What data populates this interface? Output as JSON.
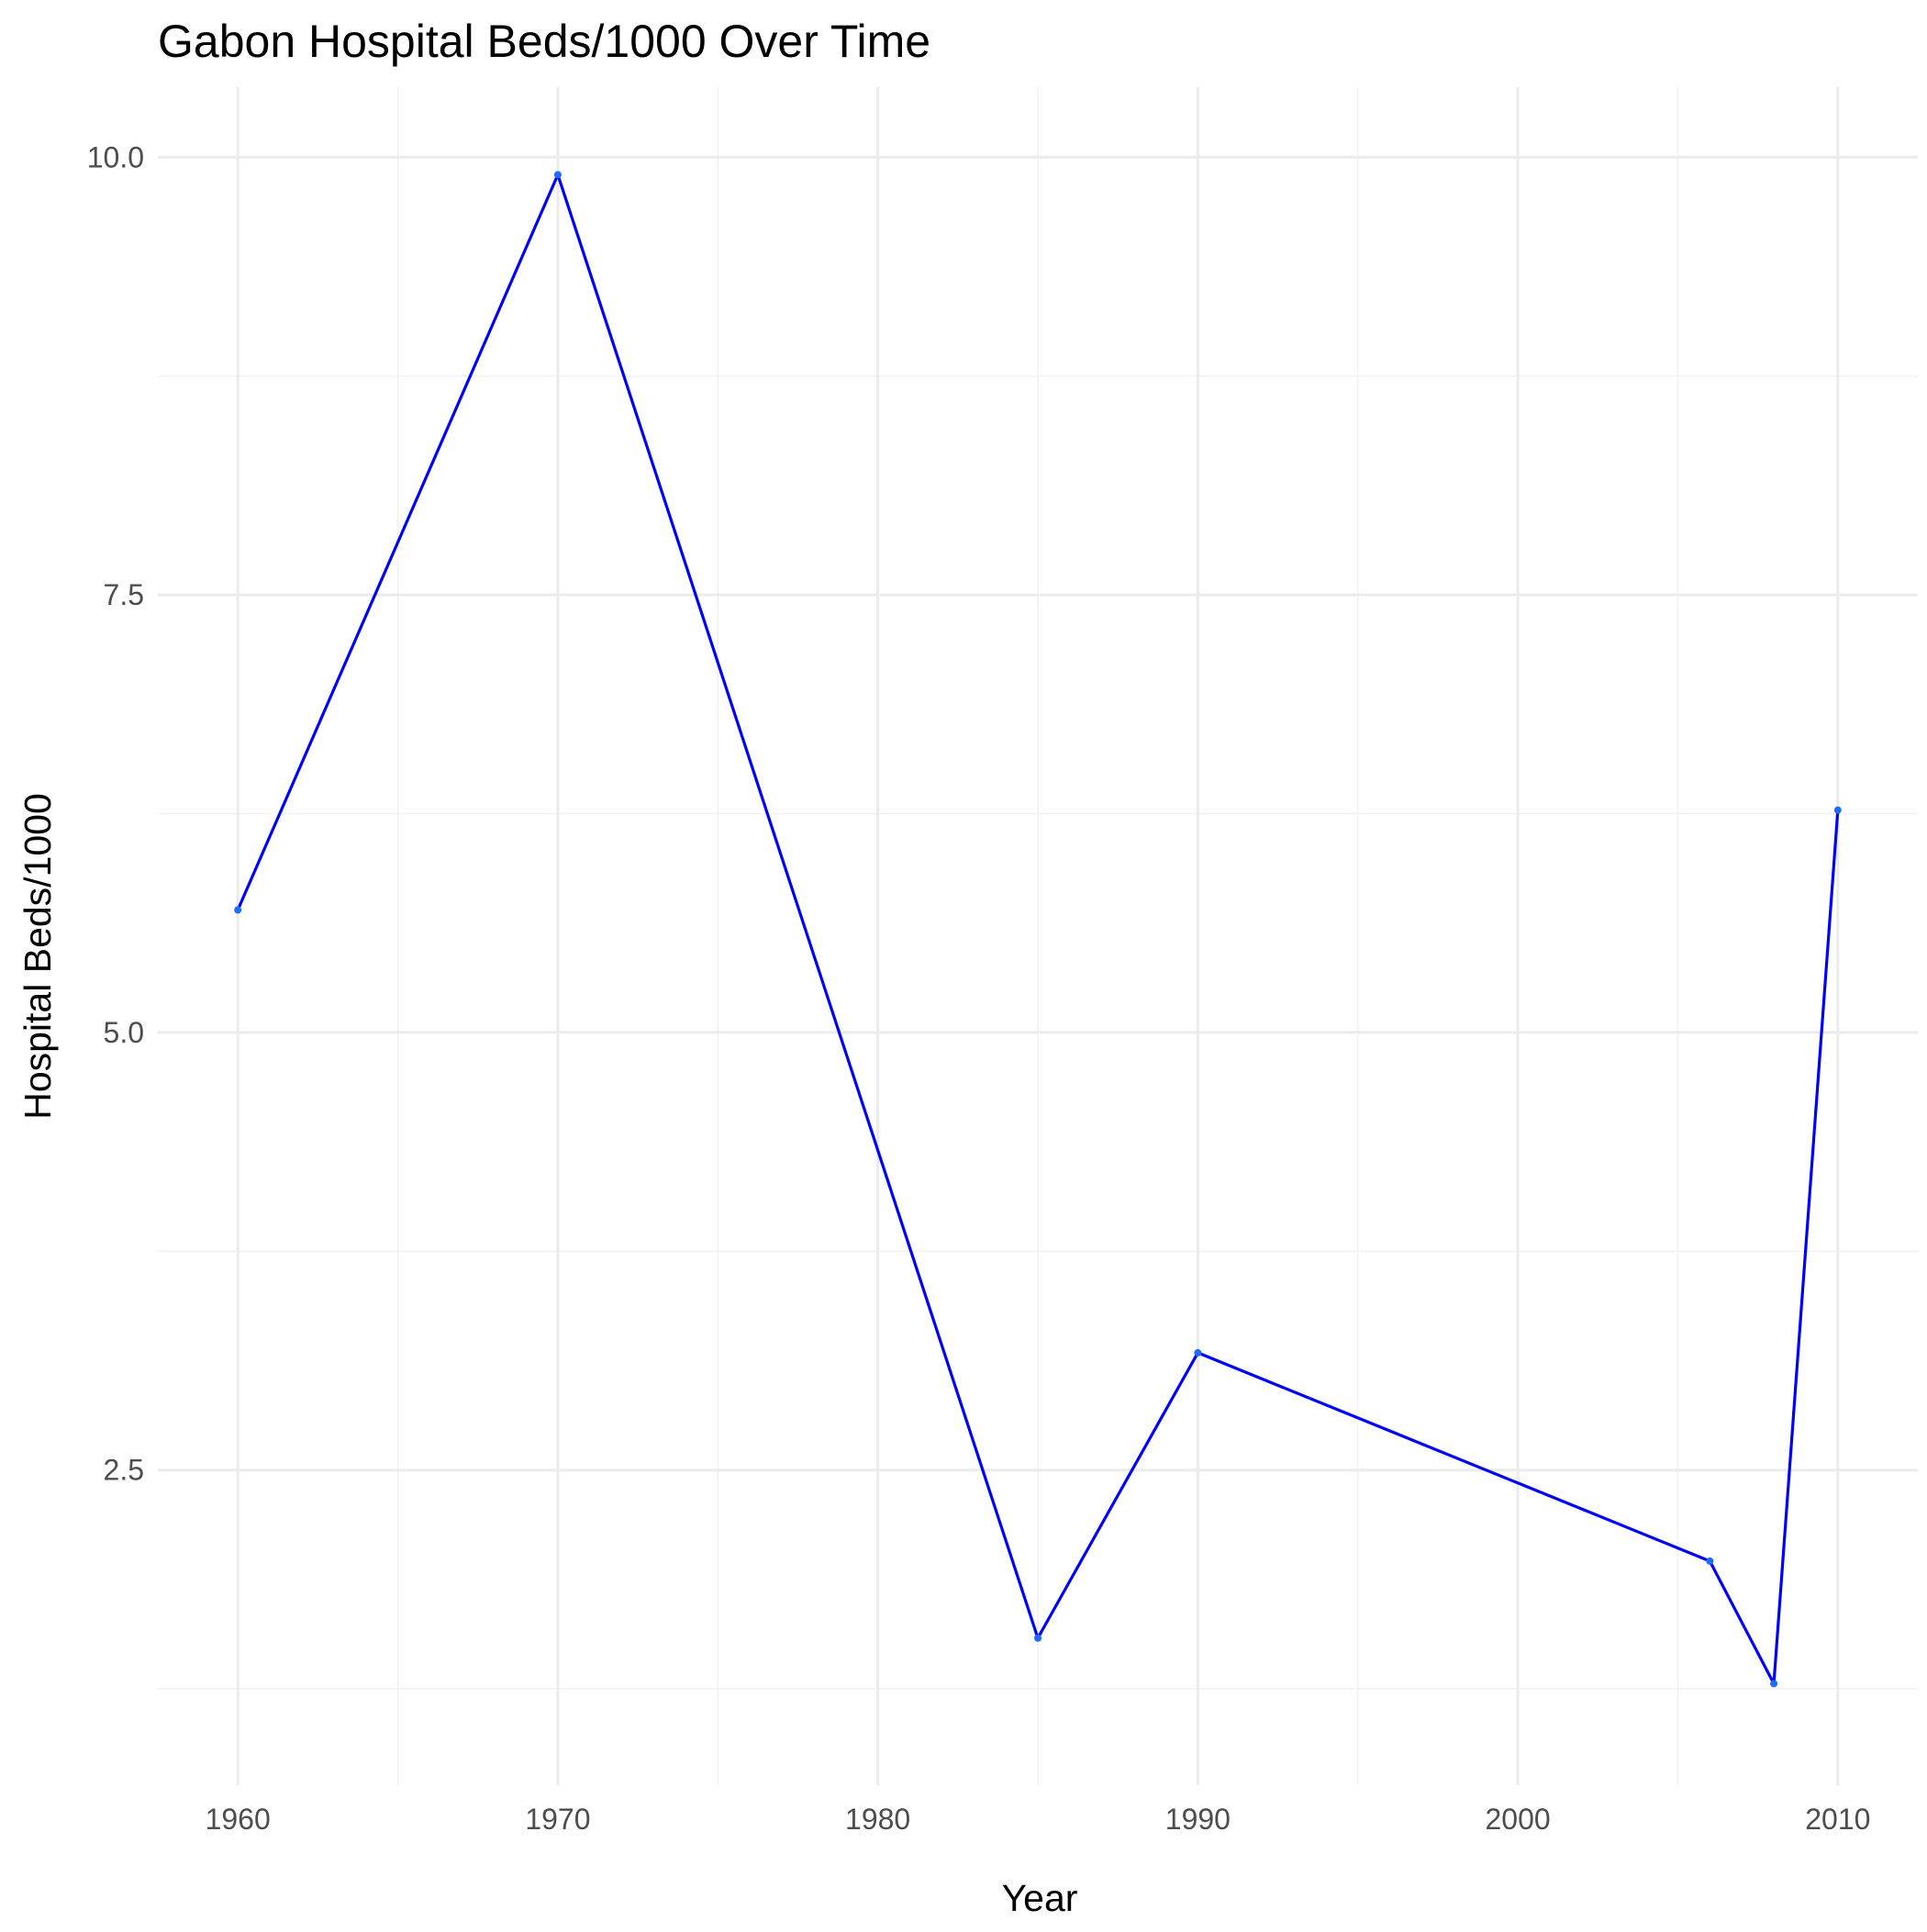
{
  "chart_data": {
    "type": "line",
    "title": "Gabon Hospital Beds/1000 Over Time",
    "xlabel": "Year",
    "ylabel": "Hospital Beds/1000",
    "xlim": [
      1957.5,
      2012.5
    ],
    "ylim": [
      0.7,
      10.4
    ],
    "x_ticks": [
      1960,
      1970,
      1980,
      1990,
      2000,
      2010
    ],
    "y_ticks": [
      2.5,
      5.0,
      7.5,
      10.0
    ],
    "x_tick_labels": [
      "1960",
      "1970",
      "1980",
      "1990",
      "2000",
      "2010"
    ],
    "y_tick_labels": [
      "2.5",
      "5.0",
      "7.5",
      "10.0"
    ],
    "grid": true,
    "legend": "none",
    "series": [
      {
        "color": "#0000ff",
        "x": [
          1960,
          1970,
          1985,
          1990,
          2006,
          2008,
          2010
        ],
        "y": [
          5.7,
          9.9,
          1.54,
          3.17,
          1.98,
          1.28,
          6.27
        ]
      }
    ]
  }
}
